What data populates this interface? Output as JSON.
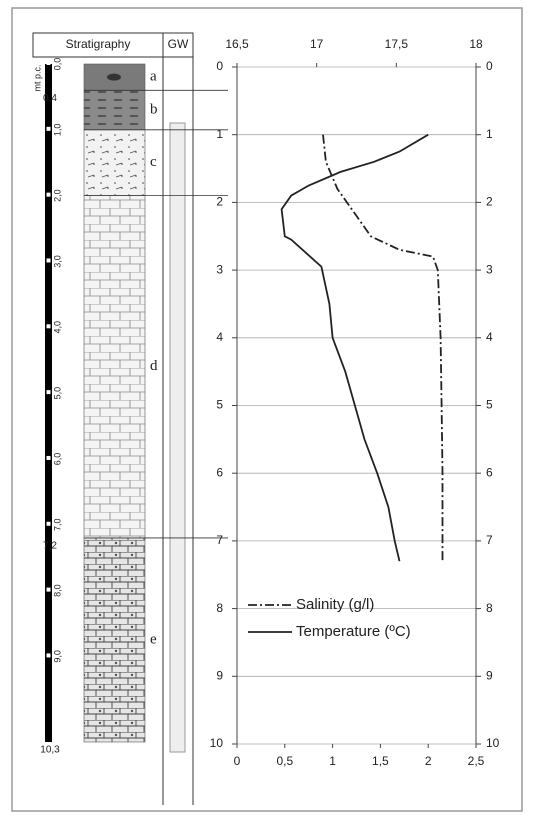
{
  "chart_data": {
    "type": "line",
    "xlim": [
      0,
      2.5
    ],
    "xticks": [
      0,
      {
        "value": 0.5,
        "label": "0,5"
      },
      1,
      {
        "value": 1.5,
        "label": "1,5"
      },
      2,
      {
        "value": 2.5,
        "label": "2,5"
      }
    ],
    "x2lim": [
      16.5,
      18
    ],
    "x2ticks": [
      {
        "value": 16.5,
        "label": "16,5"
      },
      17,
      {
        "value": 17.5,
        "label": "17,5"
      },
      18
    ],
    "ylim": [
      0,
      10
    ],
    "yticks": [
      0,
      1,
      2,
      3,
      4,
      5,
      6,
      7,
      8,
      9,
      10
    ],
    "y_inverted": true,
    "grid": true,
    "legend": "lower-left",
    "series": [
      {
        "name": "Salinity (g/l)",
        "color": "#222222",
        "dash": "dashdot",
        "axis": "x",
        "depth": [
          1.0,
          1.4,
          1.8,
          2.2,
          2.5,
          2.7,
          2.8,
          3.0,
          4.0,
          5.0,
          6.0,
          7.0,
          7.3
        ],
        "values": [
          0.9,
          0.93,
          1.05,
          1.25,
          1.4,
          1.7,
          2.05,
          2.1,
          2.13,
          2.14,
          2.15,
          2.15,
          2.15
        ]
      },
      {
        "name": "Temperature (ºC)",
        "color": "#222222",
        "dash": "solid",
        "axis": "x2",
        "depth": [
          1.0,
          1.25,
          1.4,
          1.55,
          1.75,
          1.9,
          2.1,
          2.5,
          2.55,
          2.95,
          3.5,
          4.0,
          4.5,
          5.0,
          5.5,
          6.0,
          6.5,
          7.0,
          7.3
        ],
        "values": [
          17.7,
          17.52,
          17.36,
          17.15,
          16.95,
          16.84,
          16.78,
          16.8,
          16.84,
          17.03,
          17.08,
          17.1,
          17.18,
          17.24,
          17.3,
          17.38,
          17.45,
          17.49,
          17.52
        ]
      }
    ]
  },
  "stratigraphy": {
    "title": "Stratigraphy",
    "gw": "GW",
    "unit": "mt p.c.",
    "ylim": [
      0,
      10.3
    ],
    "scale_ticks": [
      {
        "value": 0,
        "label": "0,0"
      },
      {
        "value": 1,
        "label": "1,0"
      },
      {
        "value": 2,
        "label": "2,0"
      },
      {
        "value": 3,
        "label": "3,0"
      },
      {
        "value": 4,
        "label": "4,0"
      },
      {
        "value": 5,
        "label": "5,0"
      },
      {
        "value": 6,
        "label": "6,0"
      },
      {
        "value": 7,
        "label": "7,0"
      },
      {
        "value": 8,
        "label": "8,0"
      },
      {
        "value": 9,
        "label": "9,0"
      }
    ],
    "depth_marks": [
      {
        "value": 0.4,
        "label": "0,4"
      },
      {
        "value": 7.2,
        "label": "7,2"
      },
      {
        "value": 10.3,
        "label": "10,3"
      }
    ],
    "layers": [
      {
        "label": "a",
        "top": 0,
        "bottom": 0.4
      },
      {
        "label": "b",
        "top": 0.4,
        "bottom": 1.0
      },
      {
        "label": "c",
        "top": 1.0,
        "bottom": 2.0
      },
      {
        "label": "d",
        "top": 2.0,
        "bottom": 7.2
      },
      {
        "label": "e",
        "top": 7.2,
        "bottom": 10.3
      }
    ]
  }
}
